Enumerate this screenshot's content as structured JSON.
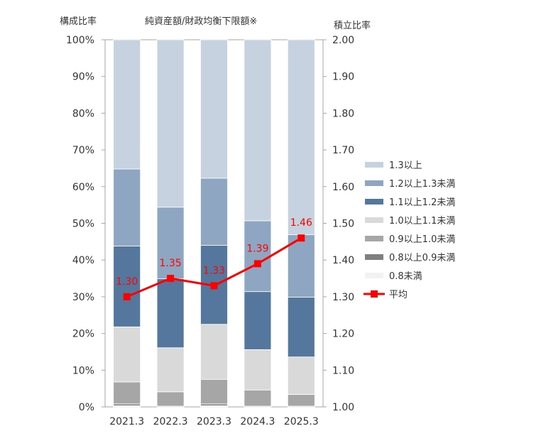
{
  "chart_data": {
    "type": "bar",
    "stacked": true,
    "title": "純資産額/財政均衡下限額※",
    "ylabel_left": "構成比率",
    "ylabel_right": "積立比率",
    "categories": [
      "2021.3",
      "2022.3",
      "2023.3",
      "2024.3",
      "2025.3"
    ],
    "ylim_left": [
      0,
      100
    ],
    "ylim_right": [
      1.0,
      2.0
    ],
    "left_ticks": [
      "0%",
      "10%",
      "20%",
      "30%",
      "40%",
      "50%",
      "60%",
      "70%",
      "80%",
      "90%",
      "100%"
    ],
    "right_ticks": [
      "1.00",
      "1.10",
      "1.20",
      "1.30",
      "1.40",
      "1.50",
      "1.60",
      "1.70",
      "1.80",
      "1.90",
      "2.00"
    ],
    "series": [
      {
        "name": "0.8未満",
        "color": "#f2f2f2",
        "values": [
          0.3,
          0.0,
          0.3,
          0.0,
          0.0
        ]
      },
      {
        "name": "0.8以上0.9未満",
        "color": "#7f7f7f",
        "values": [
          0.5,
          0.2,
          0.5,
          0.2,
          0.2
        ]
      },
      {
        "name": "0.9以上1.0未満",
        "color": "#a6a6a6",
        "values": [
          6.0,
          3.9,
          6.7,
          4.4,
          3.2
        ]
      },
      {
        "name": "1.0以上1.1未満",
        "color": "#d9d9d9",
        "values": [
          15.0,
          12.0,
          15.0,
          11.0,
          10.2
        ]
      },
      {
        "name": "1.1以上1.2未満",
        "color": "#56779d",
        "values": [
          22.0,
          18.8,
          21.5,
          15.8,
          16.3
        ]
      },
      {
        "name": "1.2以上1.3未満",
        "color": "#8fa6c2",
        "values": [
          21.0,
          19.5,
          18.3,
          19.3,
          17.0
        ]
      },
      {
        "name": "1.3以上",
        "color": "#c6d2df",
        "values": [
          35.2,
          45.6,
          37.7,
          49.3,
          53.1
        ]
      }
    ],
    "line": {
      "name": "平均",
      "color": "#ff0000",
      "axis": "right",
      "values": [
        1.3,
        1.35,
        1.33,
        1.39,
        1.46
      ],
      "labels": [
        "1.30",
        "1.35",
        "1.33",
        "1.39",
        "1.46"
      ]
    },
    "legend_order": [
      "1.3以上",
      "1.2以上1.3未満",
      "1.1以上1.2未満",
      "1.0以上1.1未満",
      "0.9以上1.0未満",
      "0.8以上0.9未満",
      "0.8未満",
      "平均"
    ],
    "legend_position": "right"
  }
}
